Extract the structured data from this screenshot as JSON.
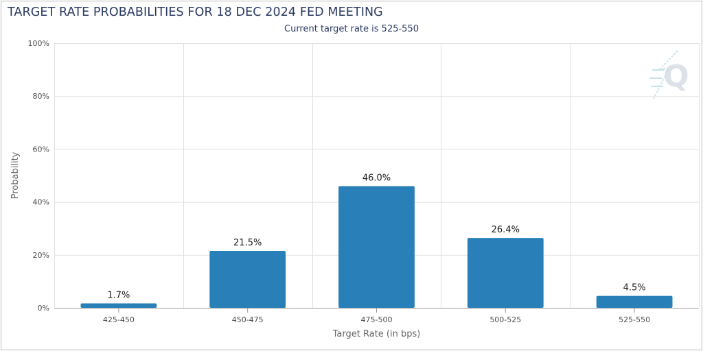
{
  "chart_data": {
    "type": "bar",
    "title": "TARGET RATE PROBABILITIES FOR 18 DEC 2024 FED MEETING",
    "subtitle": "Current target rate is 525-550",
    "categories": [
      "425-450",
      "450-475",
      "475-500",
      "500-525",
      "525-550"
    ],
    "values": [
      1.7,
      21.5,
      46.0,
      26.4,
      4.5
    ],
    "data_labels": [
      "1.7%",
      "21.5%",
      "46.0%",
      "26.4%",
      "4.5%"
    ],
    "xlabel": "Target Rate (in bps)",
    "ylabel": "Probability",
    "ylim": [
      0,
      100
    ],
    "yticks": [
      0,
      20,
      40,
      60,
      80,
      100
    ],
    "ytick_labels": [
      "0%",
      "20%",
      "40%",
      "60%",
      "80%",
      "100%"
    ],
    "grid": true,
    "legend": "none",
    "bar_color": "#2980b9",
    "watermark": "Q"
  }
}
